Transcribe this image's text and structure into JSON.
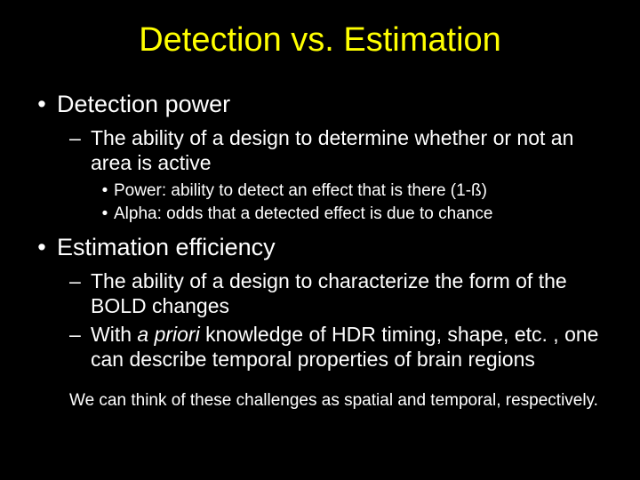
{
  "title": "Detection vs. Estimation",
  "bullets": [
    {
      "text": "Detection power",
      "children": [
        {
          "text": "The ability of a design to determine whether or not an area is active",
          "children": [
            {
              "text": "Power: ability to detect an effect that is there (1-ß)"
            },
            {
              "text": "Alpha: odds that a detected effect is due to chance"
            }
          ]
        }
      ]
    },
    {
      "text": "Estimation efficiency",
      "children": [
        {
          "text": "The ability of a design to characterize the form of the BOLD changes"
        },
        {
          "prefix": "With ",
          "italic": "a priori",
          "suffix": " knowledge of HDR timing, shape, etc. , one can describe temporal properties of brain regions"
        }
      ]
    }
  ],
  "footnote": "We can think of these challenges as spatial and temporal, respectively.",
  "colors": {
    "background": "#000000",
    "text": "#ffffff",
    "title": "#ffff00"
  },
  "fontsizes": {
    "title": 38,
    "level1": 27,
    "level2": 23,
    "level3": 19,
    "footnote": 19
  }
}
